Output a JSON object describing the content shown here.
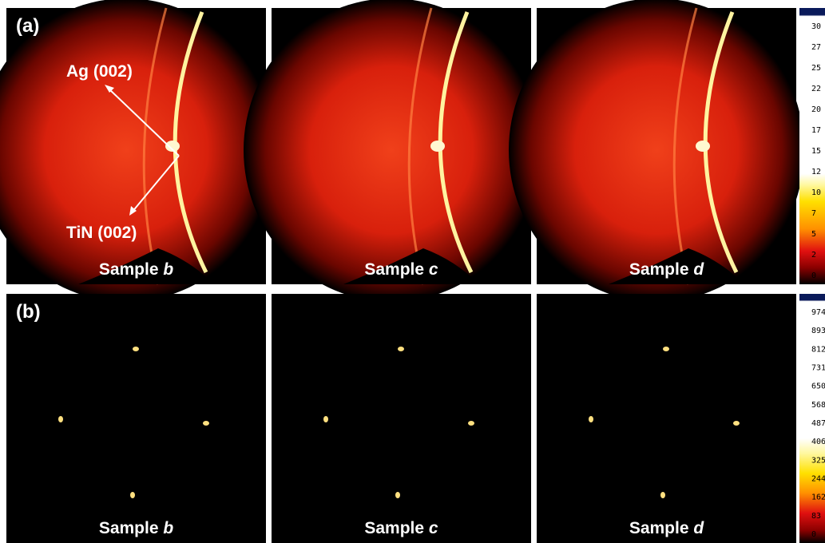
{
  "panels": [
    {
      "label": "(a)",
      "annotations": [
        "Ag (002)",
        "TiN (002)"
      ],
      "samples": [
        {
          "prefix": "Sample",
          "letter": "b"
        },
        {
          "prefix": "Sample",
          "letter": "c"
        },
        {
          "prefix": "Sample",
          "letter": "d"
        }
      ],
      "colorbar": [
        30,
        27,
        25,
        22,
        20,
        17,
        15,
        12,
        10,
        7,
        5,
        2,
        0
      ]
    },
    {
      "label": "(b)",
      "samples": [
        {
          "prefix": "Sample",
          "letter": "b"
        },
        {
          "prefix": "Sample",
          "letter": "c"
        },
        {
          "prefix": "Sample",
          "letter": "d"
        }
      ],
      "colorbar": [
        974,
        893,
        812,
        731,
        650,
        568,
        487,
        406,
        325,
        244,
        162,
        83,
        0
      ]
    }
  ]
}
